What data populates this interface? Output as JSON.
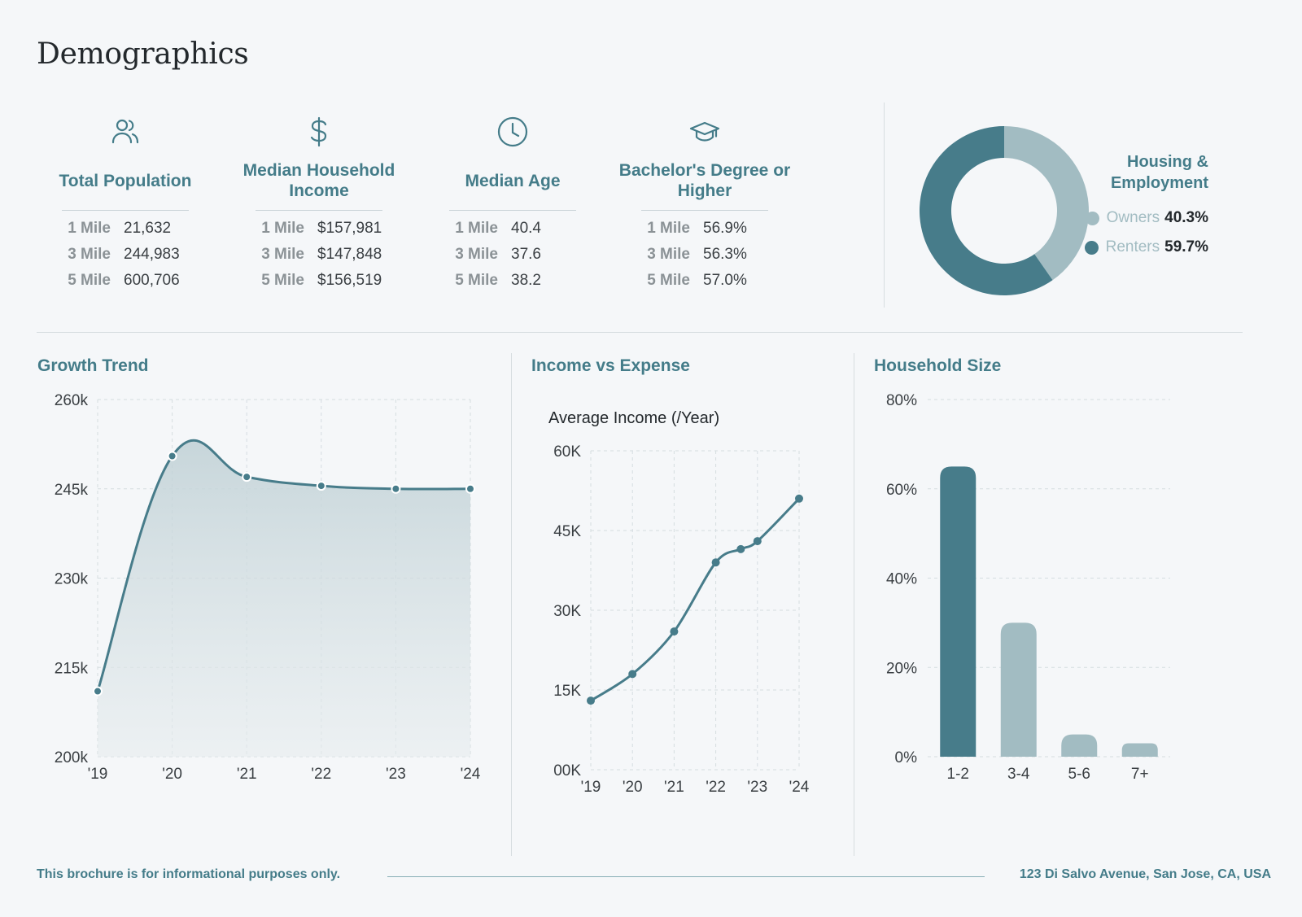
{
  "page": {
    "title": "Demographics"
  },
  "stats": [
    {
      "icon": "people-icon",
      "label": "Total Population",
      "rows": [
        {
          "k": "1 Mile",
          "v": "21,632"
        },
        {
          "k": "3 Mile",
          "v": "244,983"
        },
        {
          "k": "5 Mile",
          "v": "600,706"
        }
      ]
    },
    {
      "icon": "dollar-icon",
      "label": "Median Household Income",
      "rows": [
        {
          "k": "1 Mile",
          "v": "$157,981"
        },
        {
          "k": "3 Mile",
          "v": "$147,848"
        },
        {
          "k": "5 Mile",
          "v": "$156,519"
        }
      ]
    },
    {
      "icon": "clock-icon",
      "label": "Median Age",
      "rows": [
        {
          "k": "1 Mile",
          "v": "40.4"
        },
        {
          "k": "3 Mile",
          "v": "37.6"
        },
        {
          "k": "5 Mile",
          "v": "38.2"
        }
      ]
    },
    {
      "icon": "graduation-cap-icon",
      "label": "Bachelor's Degree or Higher",
      "rows": [
        {
          "k": "1 Mile",
          "v": "56.9%"
        },
        {
          "k": "3 Mile",
          "v": "56.3%"
        },
        {
          "k": "5 Mile",
          "v": "57.0%"
        }
      ]
    }
  ],
  "colors": {
    "primary": "#477c8a",
    "light": "#a2bcc2",
    "bg": "#f5f7f9",
    "text": "#3a3f43"
  },
  "chart_data": [
    {
      "id": "housing",
      "type": "pie",
      "title": "Housing & Employment",
      "title_line1": "Housing &",
      "title_line2": "Employment",
      "slices": [
        {
          "label": "Owners",
          "value": 40.3,
          "display": "40.3%",
          "color": "#a2bcc2"
        },
        {
          "label": "Renters",
          "value": 59.7,
          "display": "59.7%",
          "color": "#477c8a"
        }
      ]
    },
    {
      "id": "growth",
      "type": "area",
      "title": "Growth Trend",
      "categories": [
        "'19",
        "'20",
        "'21",
        "'22",
        "'23",
        "'24"
      ],
      "values": [
        211000,
        250500,
        247000,
        245500,
        245000,
        245000
      ],
      "ylim": [
        200000,
        260000
      ],
      "yticks": [
        200000,
        215000,
        230000,
        245000,
        260000
      ],
      "ytick_labels": [
        "200k",
        "215k",
        "230k",
        "245k",
        "260k"
      ]
    },
    {
      "id": "income",
      "type": "line",
      "title": "Income vs Expense",
      "subtitle": "Average Income (/Year)",
      "categories": [
        "'19",
        "'20",
        "'21",
        "'22",
        "'23",
        "'24"
      ],
      "x": [
        0,
        1,
        2,
        3,
        4,
        5
      ],
      "values": [
        13000,
        18000,
        26000,
        39000,
        43000,
        51000
      ],
      "extra_points": [
        {
          "x": 3.6,
          "y": 41500
        }
      ],
      "ylim": [
        0,
        60000
      ],
      "yticks": [
        0,
        15000,
        30000,
        45000,
        60000
      ],
      "ytick_labels": [
        "00K",
        "15K",
        "30K",
        "45K",
        "60K"
      ]
    },
    {
      "id": "household",
      "type": "bar",
      "title": "Household Size",
      "categories": [
        "1-2",
        "3-4",
        "5-6",
        "7+"
      ],
      "values": [
        65,
        30,
        5,
        3
      ],
      "ylim": [
        0,
        80
      ],
      "yticks": [
        0,
        20,
        40,
        60,
        80
      ],
      "ytick_labels": [
        "0%",
        "20%",
        "40%",
        "60%",
        "80%"
      ]
    }
  ],
  "footer": {
    "disclaimer": "This brochure is for informational purposes only.",
    "address": "123 Di Salvo Avenue, San Jose, CA, USA"
  }
}
